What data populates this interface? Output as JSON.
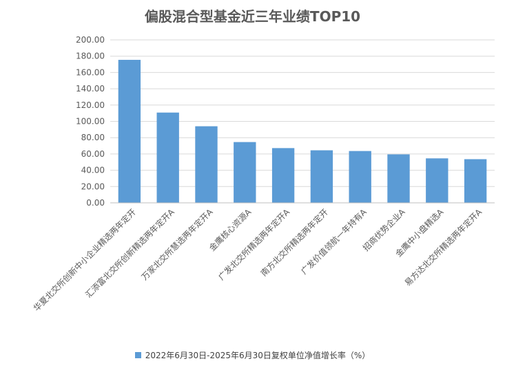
{
  "chart_data": {
    "type": "bar",
    "title": "偏股混合型基金近三年业绩TOP10",
    "categories": [
      "华夏北交所创新中小企业精选两年定开",
      "汇添富北交所创新精选两年定开A",
      "万家北交所慧选两年定开A",
      "金鹰核心资源A",
      "广发北交所精选两年定开A",
      "南方北交所精选两年定开",
      "广发价值领航一年持有A",
      "招商优势企业A",
      "金鹰中小盘精选A",
      "易方达北交所精选两年定开A"
    ],
    "series": [
      {
        "name": "2022年6月30日-2025年6月30日复权单位净值增长率（%）",
        "values": [
          175.5,
          110.8,
          94.0,
          74.6,
          67.2,
          64.5,
          63.6,
          59.5,
          54.6,
          53.6
        ],
        "color": "#5B9BD5"
      }
    ],
    "ylim": [
      0,
      200
    ],
    "yticks": [
      "0.00",
      "20.00",
      "40.00",
      "60.00",
      "80.00",
      "100.00",
      "120.00",
      "140.00",
      "160.00",
      "180.00",
      "200.00"
    ],
    "grid": true,
    "legend_position": "bottom"
  }
}
